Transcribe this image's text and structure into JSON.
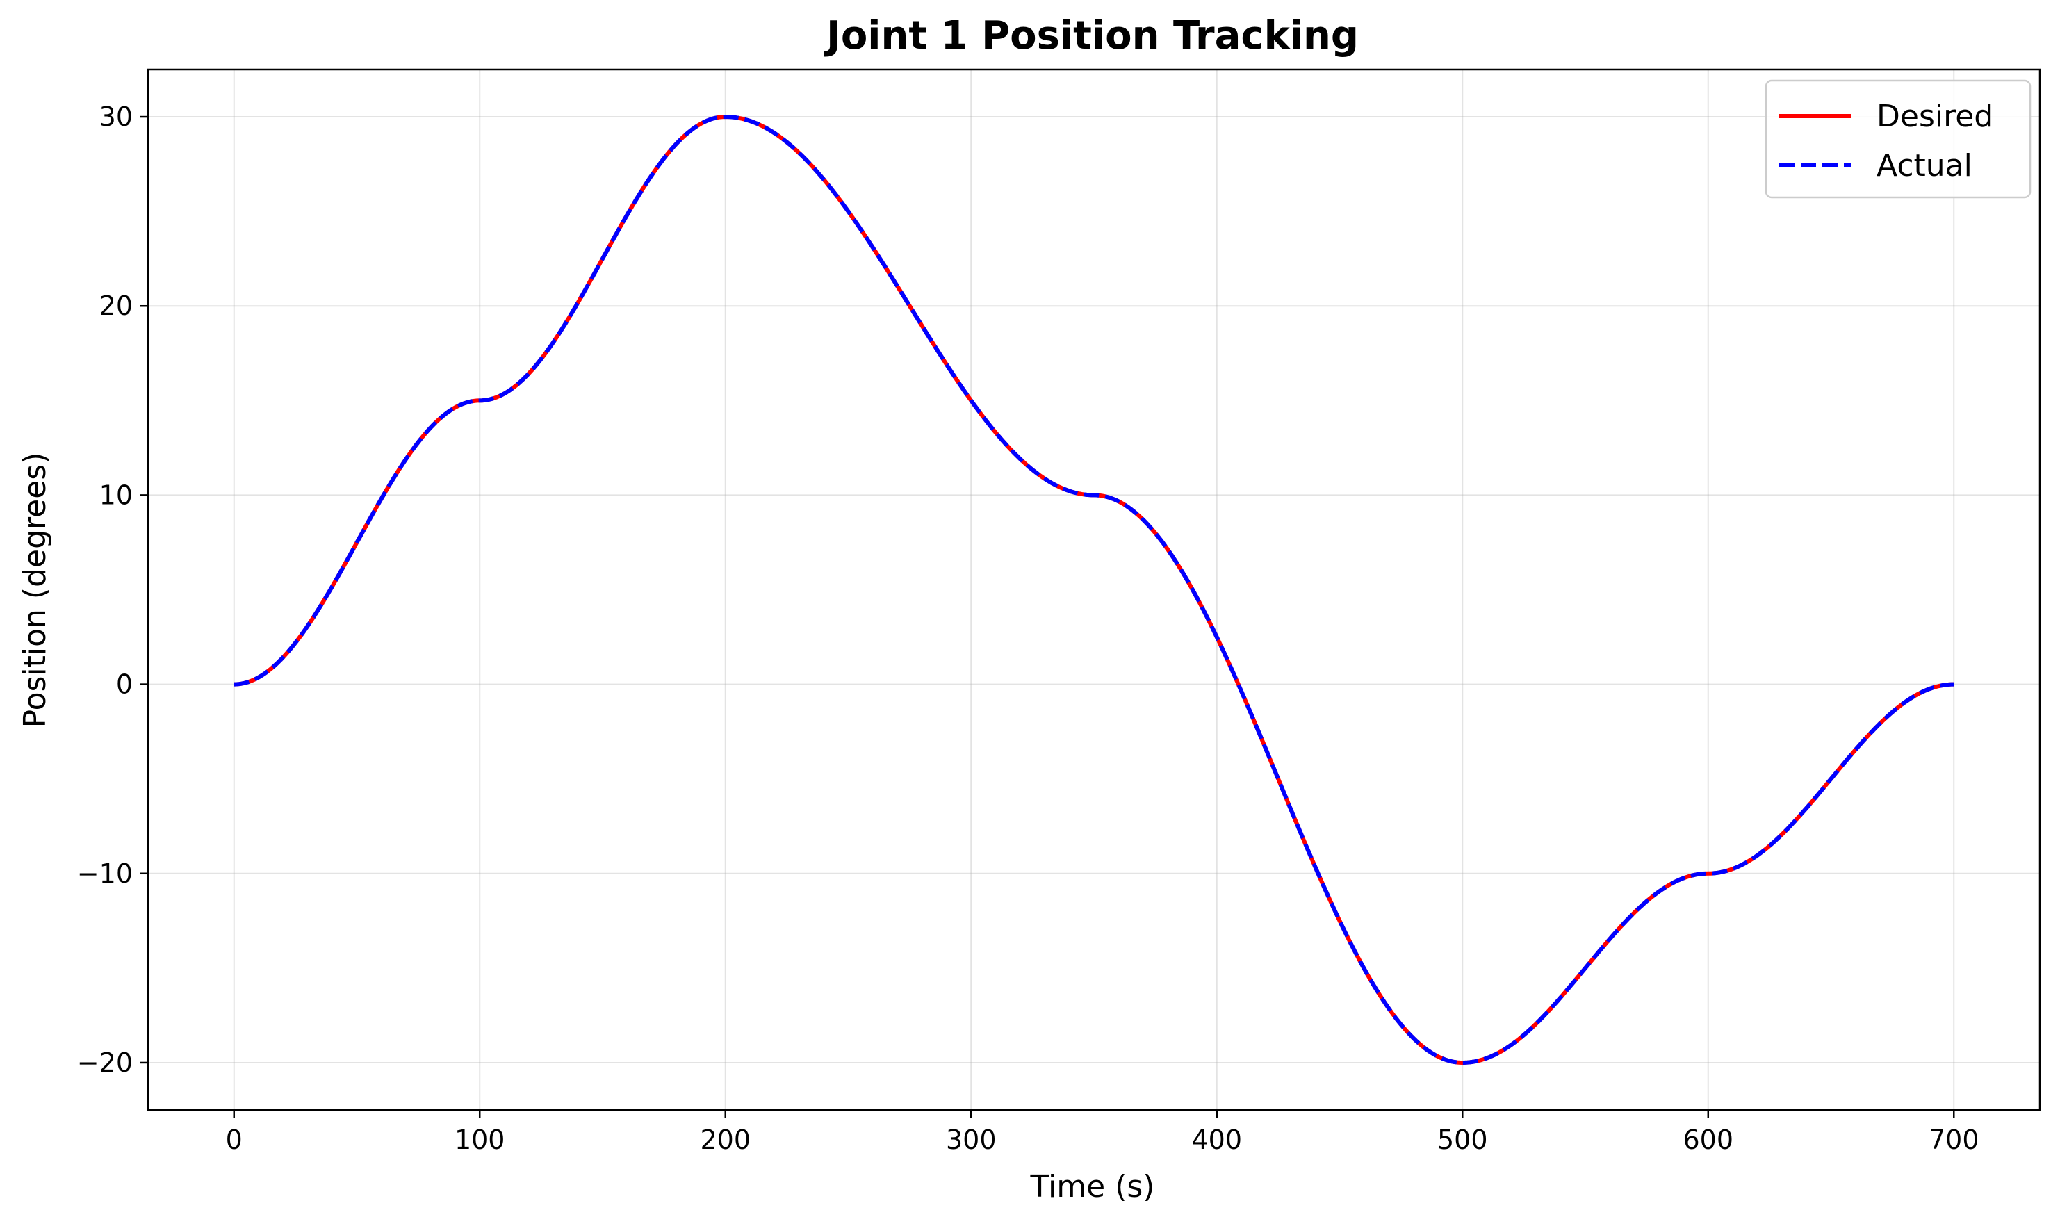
{
  "chart_data": {
    "type": "line",
    "title": "Joint 1 Position Tracking",
    "xlabel": "Time (s)",
    "ylabel": "Position (degrees)",
    "xlim": [
      -35,
      735
    ],
    "ylim": [
      -22.5,
      32.5
    ],
    "xticks": [
      0,
      100,
      200,
      300,
      400,
      500,
      600,
      700
    ],
    "xtick_labels": [
      "0",
      "100",
      "200",
      "300",
      "400",
      "500",
      "600",
      "700"
    ],
    "yticks": [
      -20,
      -10,
      0,
      10,
      20,
      30
    ],
    "ytick_labels": [
      "−20",
      "−10",
      "0",
      "10",
      "20",
      "30"
    ],
    "grid": true,
    "legend_position": "top-right",
    "trajectory_waypoints": {
      "time": [
        0,
        100,
        200,
        350,
        500,
        600,
        700
      ],
      "position": [
        0,
        15,
        30,
        10,
        -20,
        -10,
        0
      ]
    },
    "series": [
      {
        "name": "Desired",
        "color": "#ff0000",
        "style": "solid"
      },
      {
        "name": "Actual",
        "color": "#0000ff",
        "style": "dashed"
      }
    ]
  }
}
